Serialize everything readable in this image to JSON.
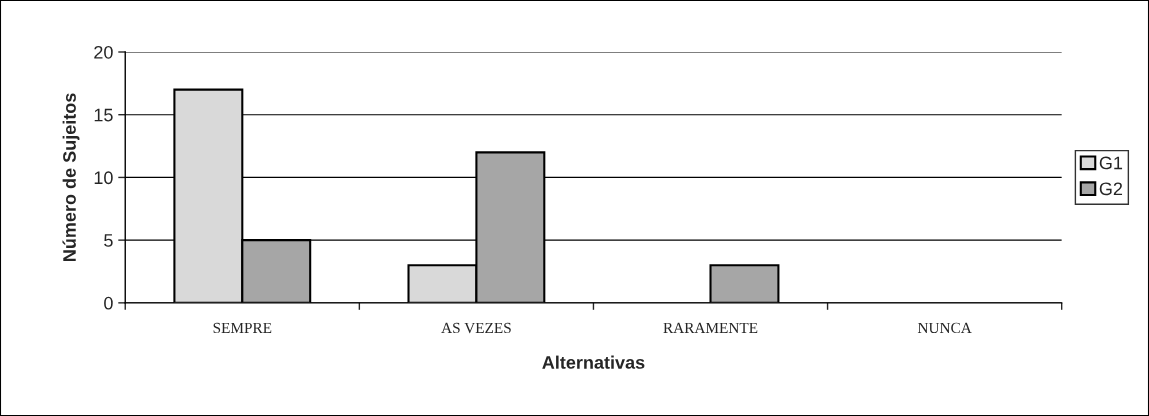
{
  "chart_data": {
    "type": "bar",
    "xlabel": "Alternativas",
    "ylabel": "Número de Sujeitos",
    "categories": [
      "SEMPRE",
      "AS VEZES",
      "RARAMENTE",
      "NUNCA"
    ],
    "series": [
      {
        "name": "G1",
        "color": "#d9d9d9",
        "values": [
          17,
          3,
          0,
          0
        ]
      },
      {
        "name": "G2",
        "color": "#a6a6a6",
        "values": [
          5,
          12,
          3,
          0
        ]
      }
    ],
    "ylim": [
      0,
      20
    ],
    "yticks": [
      0,
      5,
      10,
      15,
      20
    ],
    "grid": "y",
    "legend": "right"
  }
}
